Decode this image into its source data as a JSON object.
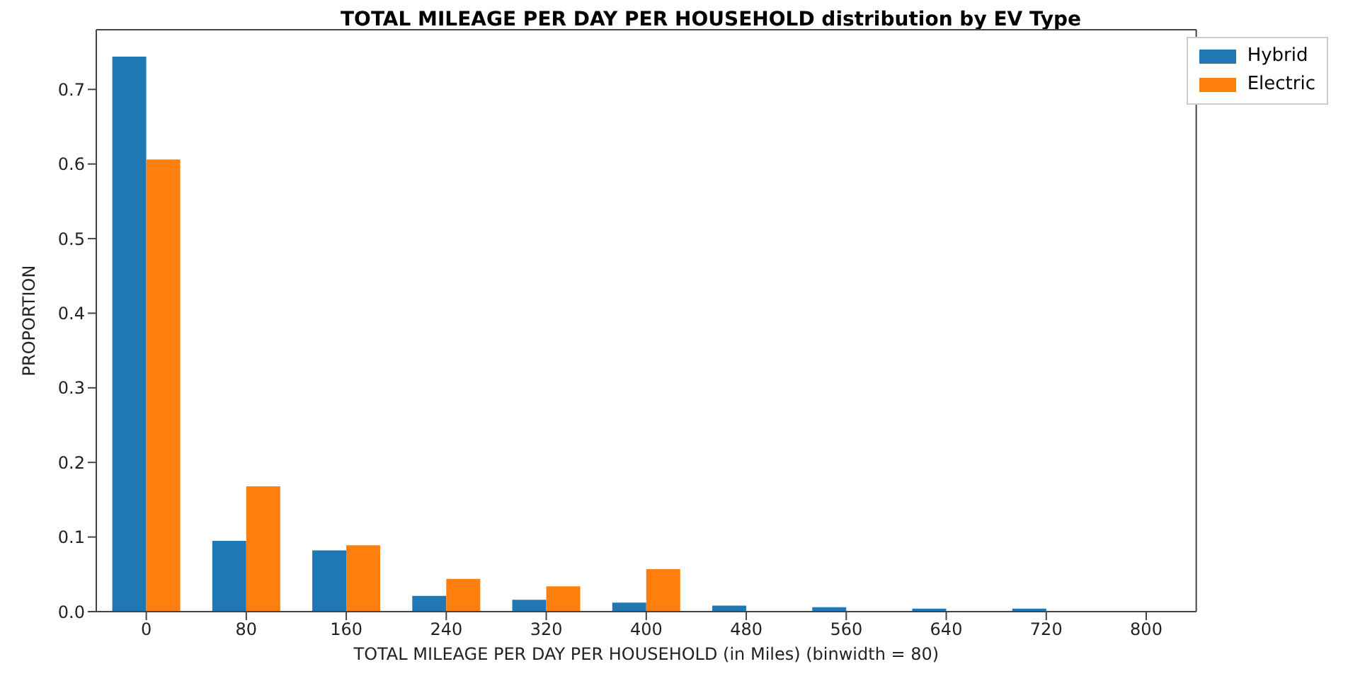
{
  "chart_data": {
    "type": "bar",
    "title": "TOTAL MILEAGE PER DAY PER HOUSEHOLD distribution by EV Type",
    "xlabel": "TOTAL MILEAGE PER DAY PER HOUSEHOLD (in Miles) (binwidth = 80)",
    "ylabel": "PROPORTION",
    "categories": [
      "0",
      "80",
      "160",
      "240",
      "320",
      "400",
      "480",
      "560",
      "640",
      "720",
      "800"
    ],
    "series": [
      {
        "name": "Hybrid",
        "color": "#1f77b4",
        "values": [
          0.744,
          0.095,
          0.082,
          0.021,
          0.016,
          0.012,
          0.008,
          0.006,
          0.004,
          0.004,
          0
        ]
      },
      {
        "name": "Electric",
        "color": "#ff7f0e",
        "values": [
          0.606,
          0.168,
          0.089,
          0.044,
          0.034,
          0.057,
          0,
          0,
          0,
          0,
          0
        ]
      }
    ],
    "ylim": [
      0,
      0.78
    ],
    "yticks": [
      {
        "value": 0,
        "label": "0.0"
      },
      0.1,
      0.2,
      0.3,
      0.4,
      0.5,
      0.6,
      0.7
    ],
    "grid": false,
    "legend": "top right"
  }
}
